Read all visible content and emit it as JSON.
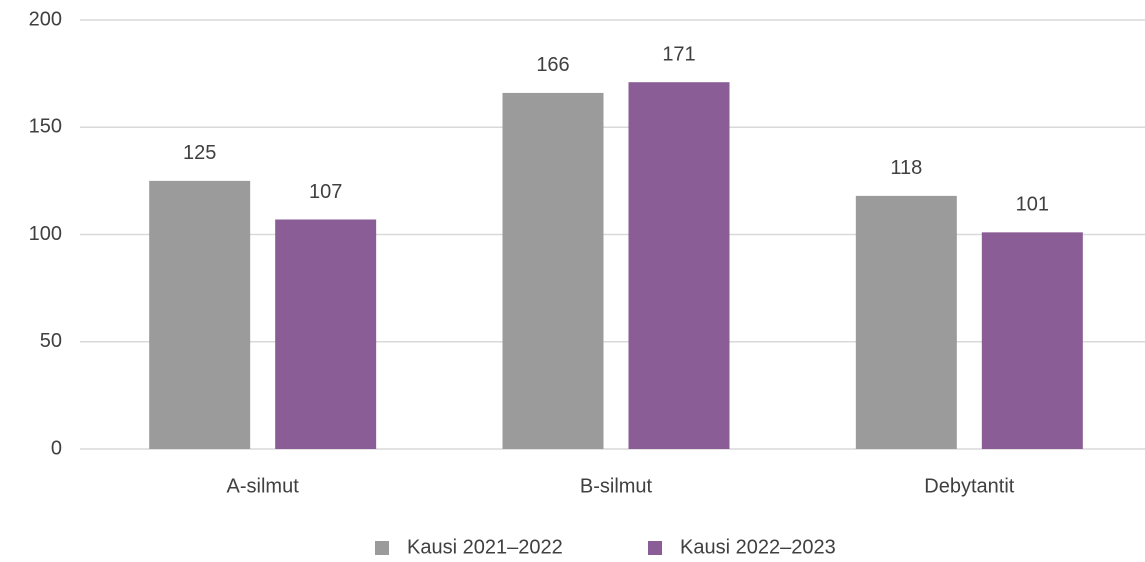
{
  "chart_data": {
    "type": "bar",
    "categories": [
      "A-silmut",
      "B-silmut",
      "Debytantit"
    ],
    "series": [
      {
        "name": "Kausi 2021–2022",
        "color": "#9b9b9b",
        "values": [
          125,
          166,
          118
        ]
      },
      {
        "name": "Kausi 2022–2023",
        "color": "#8b5d96",
        "values": [
          107,
          171,
          101
        ]
      }
    ],
    "ylim": [
      0,
      200
    ],
    "yticks": [
      0,
      50,
      100,
      150,
      200
    ],
    "grid": true,
    "legend": "bottom"
  }
}
